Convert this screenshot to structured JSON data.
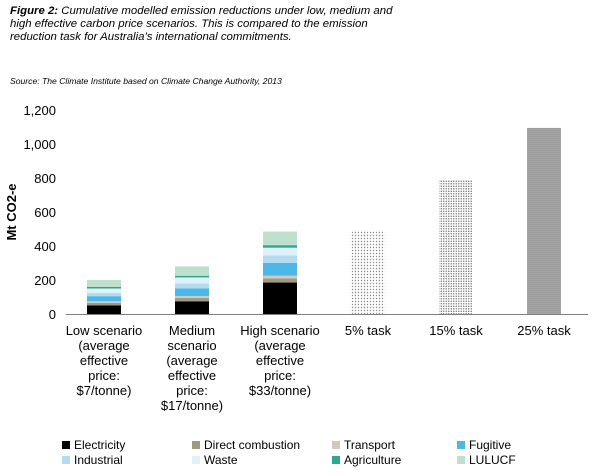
{
  "caption": {
    "figure_label": "Figure 2:",
    "text": "Cumulative modelled emission reductions under low, medium and high effective carbon price scenarios. This is compared to the emission reduction task for Australia’s international commitments."
  },
  "source": "Source: The Climate Institute based on Climate Change Authority, 2013",
  "colors": {
    "Electricity": "#000000",
    "Direct combustion": "#a09a80",
    "Transport": "#cfcabd",
    "Fugitive": "#4db8e8",
    "Industrial": "#b3dcf3",
    "Waste": "#dff2fb",
    "Agriculture": "#2ea88a",
    "LULUCF": "#bfdfcf",
    "task": "#9a9a9a"
  },
  "chart_data": {
    "type": "bar",
    "stacked": true,
    "ylabel": "Mt CO2-e",
    "xlabel": "",
    "ylim": [
      0,
      1200
    ],
    "yticks": [
      "0",
      "200",
      "400",
      "600",
      "800",
      "1,000",
      "1,200"
    ],
    "ytick_values": [
      0,
      200,
      400,
      600,
      800,
      1000,
      1200
    ],
    "grid": false,
    "legend_position": "bottom",
    "categories": [
      [
        "Low scenario",
        "(average",
        "effective",
        "price:",
        "$7/tonne)"
      ],
      [
        "Medium",
        "scenario",
        "(average",
        "effective",
        "price:",
        "$17/tonne)"
      ],
      [
        "High scenario",
        "(average",
        "effective",
        "price:",
        "$33/tonne)"
      ],
      [
        "5% task"
      ],
      [
        "15% task"
      ],
      [
        "25% task"
      ]
    ],
    "series": [
      {
        "name": "Electricity",
        "values": [
          50,
          75,
          185,
          0,
          0,
          0
        ]
      },
      {
        "name": "Direct combustion",
        "values": [
          15,
          20,
          25,
          0,
          0,
          0
        ]
      },
      {
        "name": "Transport",
        "values": [
          10,
          10,
          15,
          0,
          0,
          0
        ]
      },
      {
        "name": "Fugitive",
        "values": [
          30,
          45,
          75,
          0,
          0,
          0
        ]
      },
      {
        "name": "Industrial",
        "values": [
          20,
          30,
          45,
          0,
          0,
          0
        ]
      },
      {
        "name": "Waste",
        "values": [
          25,
          35,
          45,
          0,
          0,
          0
        ]
      },
      {
        "name": "Agriculture",
        "values": [
          10,
          10,
          15,
          0,
          0,
          0
        ]
      },
      {
        "name": "LULUCF",
        "values": [
          40,
          55,
          80,
          0,
          0,
          0
        ]
      }
    ],
    "task_values": [
      0,
      0,
      0,
      485,
      790,
      1095
    ],
    "legend": [
      "Electricity",
      "Direct combustion",
      "Transport",
      "Fugitive",
      "Industrial",
      "Waste",
      "Agriculture",
      "LULUCF"
    ]
  }
}
